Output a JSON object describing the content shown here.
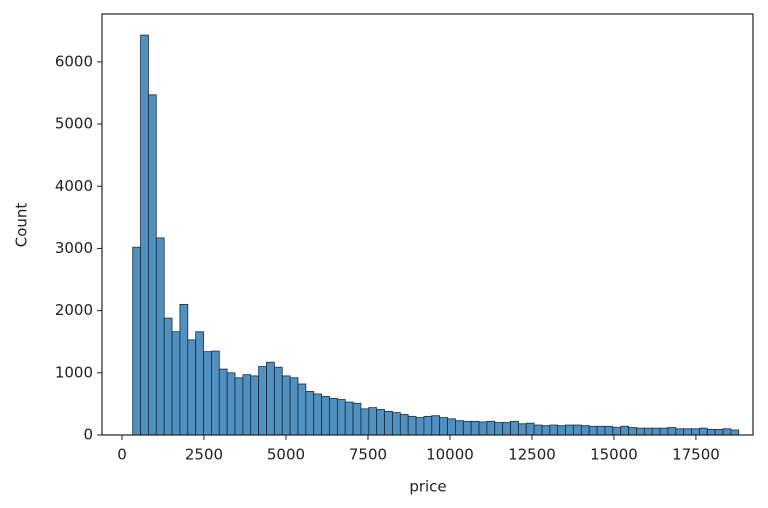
{
  "chart_data": {
    "type": "histogram",
    "xlabel": "price",
    "ylabel": "Count",
    "bins": [
      326,
      566,
      806,
      1046,
      1286,
      1526,
      1766,
      2006,
      2246,
      2486,
      2726,
      2966,
      3206,
      3446,
      3686,
      3926,
      4166,
      4406,
      4646,
      4886,
      5126,
      5366,
      5606,
      5846,
      6086,
      6326,
      6566,
      6806,
      7046,
      7286,
      7526,
      7766,
      8006,
      8246,
      8486,
      8726,
      8966,
      9206,
      9446,
      9686,
      9926,
      10166,
      10406,
      10646,
      10886,
      11126,
      11366,
      11606,
      11846,
      12086,
      12326,
      12566,
      12806,
      13046,
      13286,
      13526,
      13766,
      14006,
      14246,
      14486,
      14726,
      14966,
      15206,
      15446,
      15686,
      15926,
      16166,
      16406,
      16646,
      16886,
      17126,
      17366,
      17606,
      17846,
      18086,
      18326,
      18566,
      18806
    ],
    "counts": [
      3020,
      6430,
      5470,
      3170,
      1880,
      1660,
      2100,
      1530,
      1660,
      1340,
      1350,
      1060,
      1000,
      920,
      970,
      950,
      1100,
      1170,
      1090,
      950,
      920,
      820,
      700,
      660,
      620,
      590,
      570,
      530,
      510,
      420,
      440,
      410,
      380,
      360,
      330,
      300,
      280,
      300,
      310,
      280,
      260,
      230,
      220,
      220,
      210,
      220,
      200,
      200,
      220,
      180,
      190,
      160,
      150,
      160,
      150,
      160,
      160,
      150,
      140,
      140,
      140,
      120,
      140,
      120,
      110,
      110,
      110,
      110,
      120,
      100,
      100,
      100,
      110,
      90,
      90,
      100,
      80
    ],
    "color": "#5191c2",
    "xlim": [
      -610,
      19240
    ],
    "ylim": [
      0,
      6770
    ],
    "xticks": [
      0,
      2500,
      5000,
      7500,
      10000,
      12500,
      15000,
      17500
    ],
    "yticks": [
      0,
      1000,
      2000,
      3000,
      4000,
      5000,
      6000
    ]
  }
}
